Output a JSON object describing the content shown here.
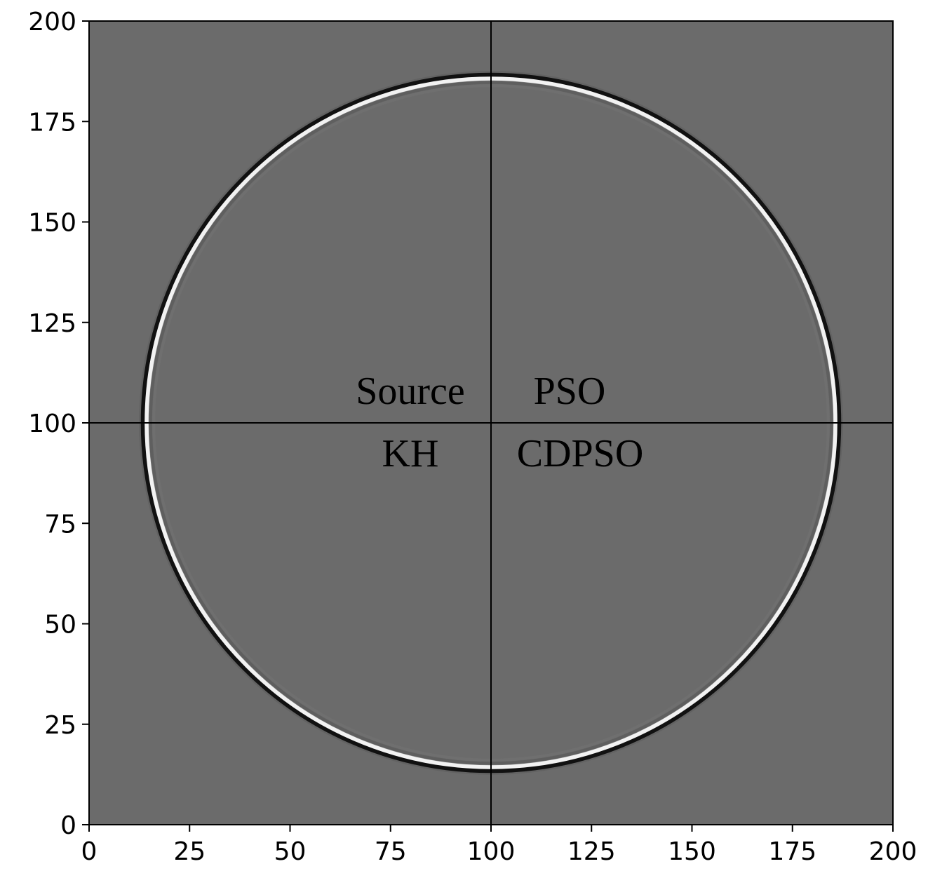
{
  "chart_data": {
    "type": "heatmap",
    "title": "",
    "xlabel": "",
    "ylabel": "",
    "xlim": [
      0,
      200
    ],
    "ylim": [
      0,
      200
    ],
    "x_ticks": [
      0,
      25,
      50,
      75,
      100,
      125,
      150,
      175,
      200
    ],
    "y_ticks": [
      0,
      25,
      50,
      75,
      100,
      125,
      150,
      175,
      200
    ],
    "x_tick_labels": [
      "0",
      "25",
      "50",
      "75",
      "100",
      "125",
      "150",
      "175",
      "200"
    ],
    "y_tick_labels": [
      "0",
      "25",
      "50",
      "75",
      "100",
      "125",
      "150",
      "175",
      "200"
    ],
    "colormap": "gray",
    "background_color": "#6b6b6b",
    "grid": false,
    "divider_lines": {
      "x": 100,
      "y": 100
    },
    "wavefront": {
      "center": [
        100,
        100
      ],
      "quadrant_radii": {
        "top_left": 86,
        "top_right": 86,
        "bottom_left": 86,
        "bottom_right": 86
      }
    },
    "quadrant_labels": [
      {
        "text": "Source",
        "quadrant": "top-left"
      },
      {
        "text": "PSO",
        "quadrant": "top-right"
      },
      {
        "text": "KH",
        "quadrant": "bottom-left"
      },
      {
        "text": "CDPSO",
        "quadrant": "bottom-right"
      }
    ]
  }
}
